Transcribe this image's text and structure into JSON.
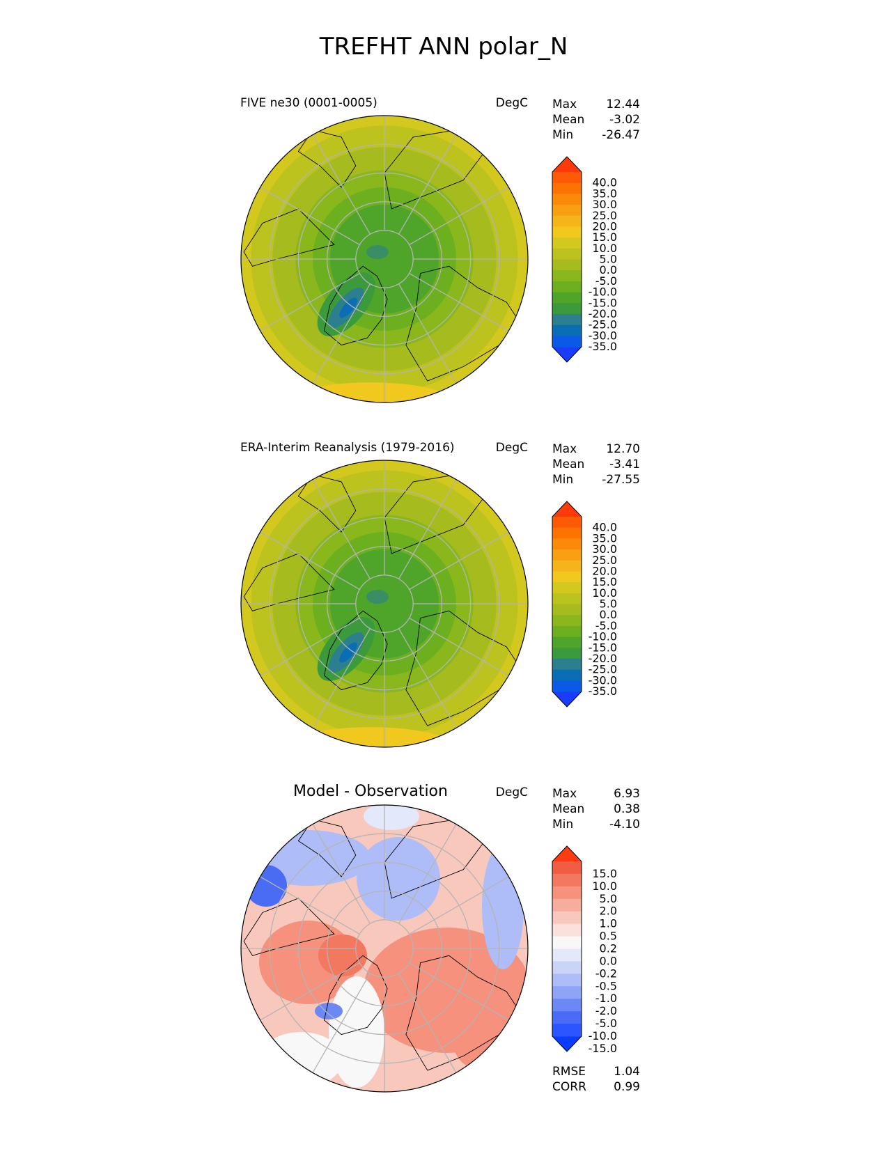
{
  "title": "TREFHT ANN polar_N",
  "colors": {
    "temperature_scale": [
      "#1a3cff",
      "#0a5ae6",
      "#0a6eb4",
      "#2c7f8e",
      "#3a9a3c",
      "#4fa52a",
      "#6cb020",
      "#8ab81c",
      "#a6bc1e",
      "#bcc21e",
      "#d2c81e",
      "#f0c81e",
      "#f5b41a",
      "#f9a012",
      "#fb8a0a",
      "#fc7203",
      "#fd5a05",
      "#ff3a0a"
    ],
    "difference_scale": [
      "#0a3cff",
      "#2d55ff",
      "#4a6cf5",
      "#6b88f5",
      "#8ea4f7",
      "#aebdf7",
      "#cad4f9",
      "#e3e8fb",
      "#f8f8f8",
      "#fbe1dc",
      "#f9c8bd",
      "#f7ad9c",
      "#f5917c",
      "#f2785f",
      "#f05c44",
      "#ff3b12"
    ],
    "coastline": "#000000",
    "gridline": "#b4b4b4"
  },
  "panels": [
    {
      "id": "model",
      "title": "FIVE ne30 (0001-0005)",
      "units": "DegC",
      "stats": [
        {
          "label": "Max",
          "value": "12.44"
        },
        {
          "label": "Mean",
          "value": "-3.02"
        },
        {
          "label": "Min",
          "value": "-26.47"
        }
      ],
      "colorbar_ticks": [
        "40.0",
        "35.0",
        "30.0",
        "25.0",
        "20.0",
        "15.0",
        "10.0",
        "5.0",
        "0.0",
        "-5.0",
        "-10.0",
        "-15.0",
        "-20.0",
        "-25.0",
        "-30.0",
        "-35.0"
      ]
    },
    {
      "id": "obs",
      "title": "ERA-Interim Reanalysis (1979-2016)",
      "units": "DegC",
      "stats": [
        {
          "label": "Max",
          "value": "12.70"
        },
        {
          "label": "Mean",
          "value": "-3.41"
        },
        {
          "label": "Min",
          "value": "-27.55"
        }
      ],
      "colorbar_ticks": [
        "40.0",
        "35.0",
        "30.0",
        "25.0",
        "20.0",
        "15.0",
        "10.0",
        "5.0",
        "0.0",
        "-5.0",
        "-10.0",
        "-15.0",
        "-20.0",
        "-25.0",
        "-30.0",
        "-35.0"
      ]
    },
    {
      "id": "diff",
      "title": "Model - Observation",
      "units": "DegC",
      "stats": [
        {
          "label": "Max",
          "value": "6.93"
        },
        {
          "label": "Mean",
          "value": "0.38"
        },
        {
          "label": "Min",
          "value": "-4.10"
        }
      ],
      "colorbar_ticks": [
        "15.0",
        "10.0",
        "5.0",
        "2.0",
        "1.0",
        "0.5",
        "0.2",
        "0.0",
        "-0.2",
        "-0.5",
        "-1.0",
        "-2.0",
        "-5.0",
        "-10.0",
        "-15.0"
      ],
      "metrics": [
        {
          "label": "RMSE",
          "value": "1.04"
        },
        {
          "label": "CORR",
          "value": "0.99"
        }
      ]
    }
  ],
  "chart_data": {
    "type": "heatmap",
    "title": "TREFHT ANN polar_N",
    "projection": "north-polar-stereographic",
    "maps": [
      {
        "name": "FIVE ne30 (0001-0005)",
        "units": "DegC",
        "max": 12.44,
        "mean": -3.02,
        "min": -26.47,
        "levels": [
          -35.0,
          -30.0,
          -25.0,
          -20.0,
          -15.0,
          -10.0,
          -5.0,
          0.0,
          5.0,
          10.0,
          15.0,
          20.0,
          25.0,
          30.0,
          35.0,
          40.0
        ]
      },
      {
        "name": "ERA-Interim Reanalysis (1979-2016)",
        "units": "DegC",
        "max": 12.7,
        "mean": -3.41,
        "min": -27.55,
        "levels": [
          -35.0,
          -30.0,
          -25.0,
          -20.0,
          -15.0,
          -10.0,
          -5.0,
          0.0,
          5.0,
          10.0,
          15.0,
          20.0,
          25.0,
          30.0,
          35.0,
          40.0
        ]
      },
      {
        "name": "Model - Observation",
        "units": "DegC",
        "max": 6.93,
        "mean": 0.38,
        "min": -4.1,
        "rmse": 1.04,
        "corr": 0.99,
        "levels": [
          -15.0,
          -10.0,
          -5.0,
          -2.0,
          -1.0,
          -0.5,
          -0.2,
          0.0,
          0.2,
          0.5,
          1.0,
          2.0,
          5.0,
          10.0,
          15.0
        ]
      }
    ]
  }
}
